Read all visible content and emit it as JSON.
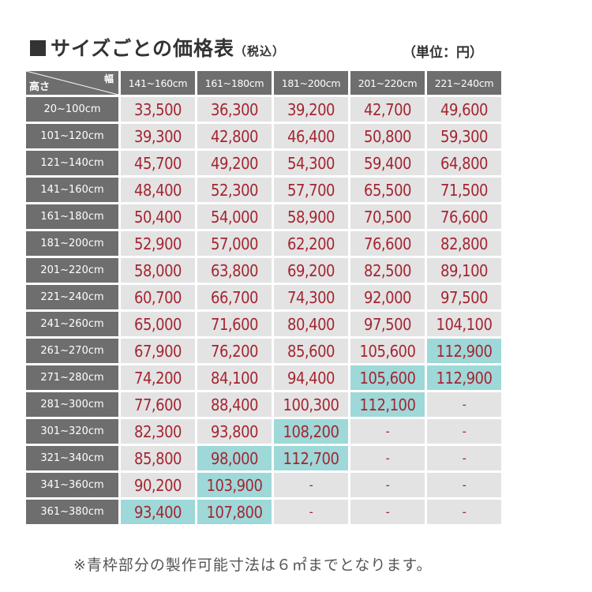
{
  "title": {
    "main": "サイズごとの価格表",
    "tax": "（税込）"
  },
  "unit": "（単位：円）",
  "table": {
    "corner_height_label": "高さ",
    "corner_width_label": "幅",
    "columns": [
      "141~160cm",
      "161~180cm",
      "181~200cm",
      "201~220cm",
      "221~240cm"
    ],
    "rows": [
      {
        "label": "20~100cm",
        "values": [
          "33,500",
          "36,300",
          "39,200",
          "42,700",
          "49,600"
        ],
        "highlight": [
          false,
          false,
          false,
          false,
          false
        ]
      },
      {
        "label": "101~120cm",
        "values": [
          "39,300",
          "42,800",
          "46,400",
          "50,800",
          "59,300"
        ],
        "highlight": [
          false,
          false,
          false,
          false,
          false
        ]
      },
      {
        "label": "121~140cm",
        "values": [
          "45,700",
          "49,200",
          "54,300",
          "59,400",
          "64,800"
        ],
        "highlight": [
          false,
          false,
          false,
          false,
          false
        ]
      },
      {
        "label": "141~160cm",
        "values": [
          "48,400",
          "52,300",
          "57,700",
          "65,500",
          "71,500"
        ],
        "highlight": [
          false,
          false,
          false,
          false,
          false
        ]
      },
      {
        "label": "161~180cm",
        "values": [
          "50,400",
          "54,000",
          "58,900",
          "70,500",
          "76,600"
        ],
        "highlight": [
          false,
          false,
          false,
          false,
          false
        ]
      },
      {
        "label": "181~200cm",
        "values": [
          "52,900",
          "57,000",
          "62,200",
          "76,600",
          "82,800"
        ],
        "highlight": [
          false,
          false,
          false,
          false,
          false
        ]
      },
      {
        "label": "201~220cm",
        "values": [
          "58,000",
          "63,800",
          "69,200",
          "82,500",
          "89,100"
        ],
        "highlight": [
          false,
          false,
          false,
          false,
          false
        ]
      },
      {
        "label": "221~240cm",
        "values": [
          "60,700",
          "66,700",
          "74,300",
          "92,000",
          "97,500"
        ],
        "highlight": [
          false,
          false,
          false,
          false,
          false
        ]
      },
      {
        "label": "241~260cm",
        "values": [
          "65,000",
          "71,600",
          "80,400",
          "97,500",
          "104,100"
        ],
        "highlight": [
          false,
          false,
          false,
          false,
          false
        ]
      },
      {
        "label": "261~270cm",
        "values": [
          "67,900",
          "76,200",
          "85,600",
          "105,600",
          "112,900"
        ],
        "highlight": [
          false,
          false,
          false,
          false,
          true
        ]
      },
      {
        "label": "271~280cm",
        "values": [
          "74,200",
          "84,100",
          "94,400",
          "105,600",
          "112,900"
        ],
        "highlight": [
          false,
          false,
          false,
          true,
          true
        ]
      },
      {
        "label": "281~300cm",
        "values": [
          "77,600",
          "88,400",
          "100,300",
          "112,100",
          "-"
        ],
        "highlight": [
          false,
          false,
          false,
          true,
          false
        ]
      },
      {
        "label": "301~320cm",
        "values": [
          "82,300",
          "93,800",
          "108,200",
          "-",
          "-"
        ],
        "highlight": [
          false,
          false,
          true,
          false,
          false
        ]
      },
      {
        "label": "321~340cm",
        "values": [
          "85,800",
          "98,000",
          "112,700",
          "-",
          "-"
        ],
        "highlight": [
          false,
          true,
          true,
          false,
          false
        ]
      },
      {
        "label": "341~360cm",
        "values": [
          "90,200",
          "103,900",
          "-",
          "-",
          "-"
        ],
        "highlight": [
          false,
          true,
          false,
          false,
          false
        ]
      },
      {
        "label": "361~380cm",
        "values": [
          "93,400",
          "107,800",
          "-",
          "-",
          "-"
        ],
        "highlight": [
          true,
          true,
          false,
          false,
          false
        ]
      }
    ]
  },
  "note": "※青枠部分の製作可能寸法は６㎡までとなります。",
  "colors": {
    "header_bg": "#6e6e6e",
    "cell_bg": "#e3e3e3",
    "highlight_bg": "#9ed8d8",
    "price_text": "#a42531"
  }
}
